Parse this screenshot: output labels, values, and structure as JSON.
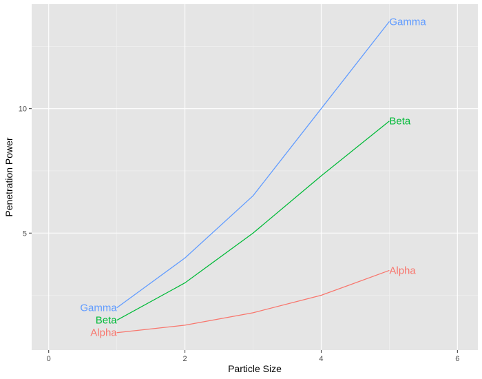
{
  "chart_data": {
    "type": "line",
    "xlabel": "Particle Size",
    "ylabel": "Penetration Power",
    "xlim": [
      -0.25,
      6.3
    ],
    "ylim": [
      0.3,
      14.2
    ],
    "x_ticks": [
      0,
      2,
      4,
      6
    ],
    "x_minor": [
      1,
      3,
      5
    ],
    "y_ticks": [
      5,
      10
    ],
    "y_minor": [
      2.5,
      7.5,
      12.5
    ],
    "grid": true,
    "legend": "none",
    "background": "#E5E5E5",
    "series": [
      {
        "name": "Alpha",
        "color": "#F8766D",
        "x": [
          1,
          2,
          3,
          4,
          5
        ],
        "y": [
          1,
          1.3,
          1.8,
          2.5,
          3.5
        ]
      },
      {
        "name": "Beta",
        "color": "#00BA38",
        "x": [
          1,
          2,
          3,
          4,
          5
        ],
        "y": [
          1.5,
          3,
          5,
          7.3,
          9.5
        ]
      },
      {
        "name": "Gamma",
        "color": "#619CFF",
        "x": [
          1,
          2,
          3,
          4,
          5
        ],
        "y": [
          2,
          4,
          6.5,
          10,
          13.5
        ]
      }
    ]
  }
}
